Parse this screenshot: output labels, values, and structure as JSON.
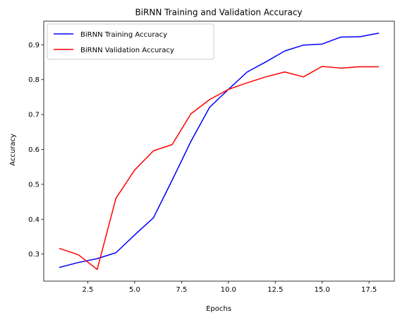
{
  "chart_data": {
    "type": "line",
    "title": "BiRNN Training and Validation Accuracy",
    "xlabel": "Epochs",
    "ylabel": "Accuracy",
    "xlim": [
      0.15,
      18.85
    ],
    "ylim": [
      0.2225,
      0.9675
    ],
    "xticks": [
      2.5,
      5.0,
      7.5,
      10.0,
      12.5,
      15.0,
      17.5
    ],
    "xtick_labels": [
      "2.5",
      "5.0",
      "7.5",
      "10.0",
      "12.5",
      "15.0",
      "17.5"
    ],
    "yticks": [
      0.3,
      0.4,
      0.5,
      0.6,
      0.7,
      0.8,
      0.9
    ],
    "ytick_labels": [
      "0.3",
      "0.4",
      "0.5",
      "0.6",
      "0.7",
      "0.8",
      "0.9"
    ],
    "grid": false,
    "legend_position": "upper-left",
    "x": [
      1,
      2,
      3,
      4,
      5,
      6,
      7,
      8,
      9,
      10,
      11,
      12,
      13,
      14,
      15,
      16,
      17,
      18
    ],
    "series": [
      {
        "name": "BiRNN Training Accuracy",
        "color": "#0000ff",
        "values": [
          0.262,
          0.276,
          0.287,
          0.304,
          0.355,
          0.404,
          0.512,
          0.623,
          0.721,
          0.772,
          0.822,
          0.851,
          0.882,
          0.899,
          0.902,
          0.922,
          0.923,
          0.933
        ]
      },
      {
        "name": "BiRNN Validation Accuracy",
        "color": "#ff0000",
        "values": [
          0.316,
          0.298,
          0.256,
          0.46,
          0.541,
          0.596,
          0.614,
          0.702,
          0.743,
          0.772,
          0.791,
          0.808,
          0.822,
          0.808,
          0.838,
          0.833,
          0.837,
          0.837
        ]
      }
    ]
  }
}
